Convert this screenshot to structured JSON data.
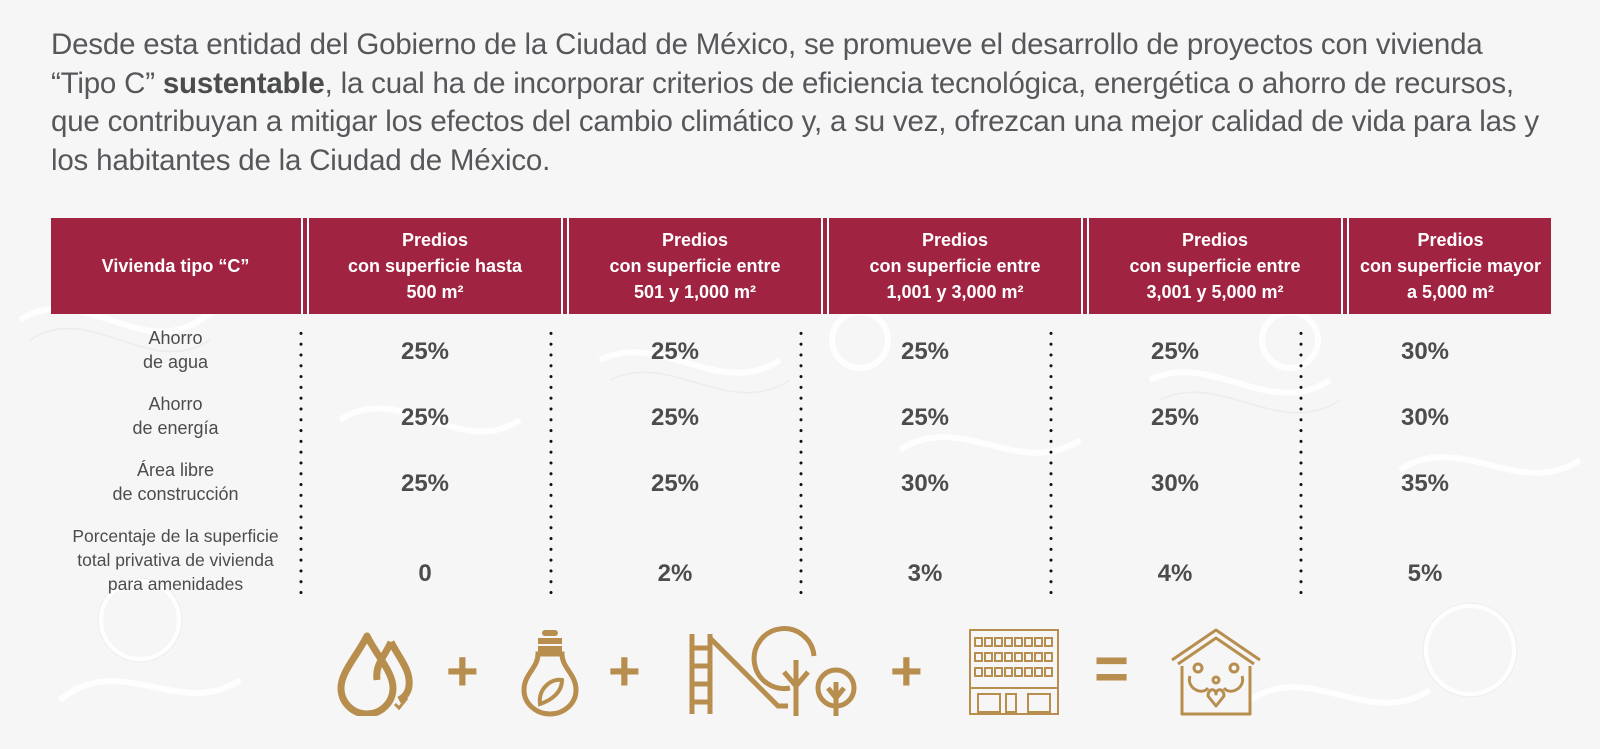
{
  "intro": {
    "text_before": "Desde esta entidad del Gobierno de la Ciudad de México, se promueve el desarrollo de proyectos con vivienda “Tipo C” ",
    "bold": "sustentable",
    "text_after": ", la cual ha de incorporar criterios de eficiencia tecnológica, energética o ahorro de recursos, que contribuyan a mitigar los efectos del cambio climático y, a su vez, ofrezcan una mejor calidad de vida para las y los habitantes de la Ciudad de México."
  },
  "table": {
    "header_first": "Vivienda tipo “C”",
    "columns": [
      {
        "line1": "Predios",
        "line2": "con superficie hasta",
        "line3": "500 m²"
      },
      {
        "line1": "Predios",
        "line2": "con superficie entre",
        "line3": "501 y 1,000 m²"
      },
      {
        "line1": "Predios",
        "line2": "con superficie entre",
        "line3": "1,001 y 3,000 m²"
      },
      {
        "line1": "Predios",
        "line2": "con superficie entre",
        "line3": "3,001 y 5,000 m²"
      },
      {
        "line1": "Predios",
        "line2": "con superficie mayor",
        "line3": "a 5,000 m²"
      }
    ],
    "rows": [
      {
        "label1": "Ahorro",
        "label2": "de agua",
        "label3": "",
        "values": [
          "25%",
          "25%",
          "25%",
          "25%",
          "30%"
        ]
      },
      {
        "label1": "Ahorro",
        "label2": "de energía",
        "label3": "",
        "values": [
          "25%",
          "25%",
          "25%",
          "25%",
          "30%"
        ]
      },
      {
        "label1": "Área libre",
        "label2": "de construcción",
        "label3": "",
        "values": [
          "25%",
          "25%",
          "30%",
          "30%",
          "35%"
        ]
      },
      {
        "label1": "Porcentaje de la superficie",
        "label2": "total privativa de vivienda",
        "label3": "para amenidades",
        "values": [
          "0",
          "2%",
          "3%",
          "4%",
          "5%"
        ]
      }
    ]
  },
  "equation": {
    "icons": [
      "water-drops-icon",
      "eco-lightbulb-icon",
      "playground-trees-icon",
      "apartment-building-icon",
      "family-home-icon"
    ],
    "operators": [
      "+",
      "+",
      "+",
      "="
    ]
  },
  "colors": {
    "header_bg": "#a02341",
    "icon_gold": "#b88e4f",
    "text": "#4b4c4e"
  }
}
